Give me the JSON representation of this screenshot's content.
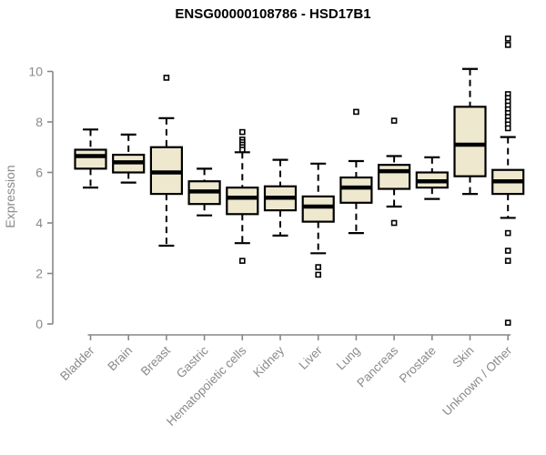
{
  "title": "ENSG00000108786 - HSD17B1",
  "chart_data": {
    "type": "boxplot",
    "title": "ENSG00000108786 - HSD17B1",
    "xlabel": "",
    "ylabel": "Expression",
    "yticks": [
      0,
      2,
      4,
      6,
      8,
      10
    ],
    "ylim": [
      -0.5,
      11.6
    ],
    "grid": false,
    "legend": "none",
    "colors": {
      "box_fill": "#EEE8CF",
      "box_stroke": "#000000",
      "median_color": "#000000",
      "axis_color": "#878787",
      "tick_label_color": "#8a8a8a",
      "title_color": "#000000",
      "background": "#ffffff"
    },
    "categories": [
      "Bladder",
      "Brain",
      "Breast",
      "Gastric",
      "Hematopoietic cells",
      "Kidney",
      "Liver",
      "Lung",
      "Pancreas",
      "Prostate",
      "Skin",
      "Unknown / Other"
    ],
    "boxes": [
      {
        "category": "Bladder",
        "whisker_low": 5.4,
        "q1": 6.15,
        "median": 6.65,
        "q3": 6.9,
        "whisker_high": 7.7,
        "outliers": []
      },
      {
        "category": "Brain",
        "whisker_low": 5.6,
        "q1": 6.0,
        "median": 6.4,
        "q3": 6.7,
        "whisker_high": 7.5,
        "outliers": []
      },
      {
        "category": "Breast",
        "whisker_low": 3.1,
        "q1": 5.15,
        "median": 6.0,
        "q3": 7.0,
        "whisker_high": 8.15,
        "outliers": [
          9.75
        ]
      },
      {
        "category": "Gastric",
        "whisker_low": 4.3,
        "q1": 4.75,
        "median": 5.25,
        "q3": 5.65,
        "whisker_high": 6.15,
        "outliers": []
      },
      {
        "category": "Hematopoietic cells",
        "whisker_low": 3.2,
        "q1": 4.35,
        "median": 5.0,
        "q3": 5.4,
        "whisker_high": 6.8,
        "outliers": [
          7.6,
          7.3,
          7.2,
          7.1,
          7.0,
          6.9,
          2.5
        ]
      },
      {
        "category": "Kidney",
        "whisker_low": 3.5,
        "q1": 4.5,
        "median": 5.0,
        "q3": 5.45,
        "whisker_high": 6.5,
        "outliers": []
      },
      {
        "category": "Liver",
        "whisker_low": 2.8,
        "q1": 4.05,
        "median": 4.65,
        "q3": 5.05,
        "whisker_high": 6.35,
        "outliers": [
          2.25,
          1.95
        ]
      },
      {
        "category": "Lung",
        "whisker_low": 3.6,
        "q1": 4.8,
        "median": 5.4,
        "q3": 5.8,
        "whisker_high": 6.45,
        "outliers": [
          8.4
        ]
      },
      {
        "category": "Pancreas",
        "whisker_low": 4.65,
        "q1": 5.35,
        "median": 6.05,
        "q3": 6.3,
        "whisker_high": 6.65,
        "outliers": [
          8.05,
          4.0
        ]
      },
      {
        "category": "Prostate",
        "whisker_low": 4.95,
        "q1": 5.4,
        "median": 5.65,
        "q3": 6.0,
        "whisker_high": 6.6,
        "outliers": []
      },
      {
        "category": "Skin",
        "whisker_low": 5.15,
        "q1": 5.85,
        "median": 7.1,
        "q3": 8.6,
        "whisker_high": 10.1,
        "outliers": []
      },
      {
        "category": "Unknown / Other",
        "whisker_low": 4.2,
        "q1": 5.15,
        "median": 5.65,
        "q3": 6.1,
        "whisker_high": 7.4,
        "outliers": [
          11.3,
          11.05,
          9.1,
          8.95,
          8.8,
          8.65,
          8.5,
          8.35,
          8.2,
          8.05,
          7.9,
          7.75,
          3.6,
          2.9,
          2.5,
          0.05
        ]
      }
    ]
  }
}
